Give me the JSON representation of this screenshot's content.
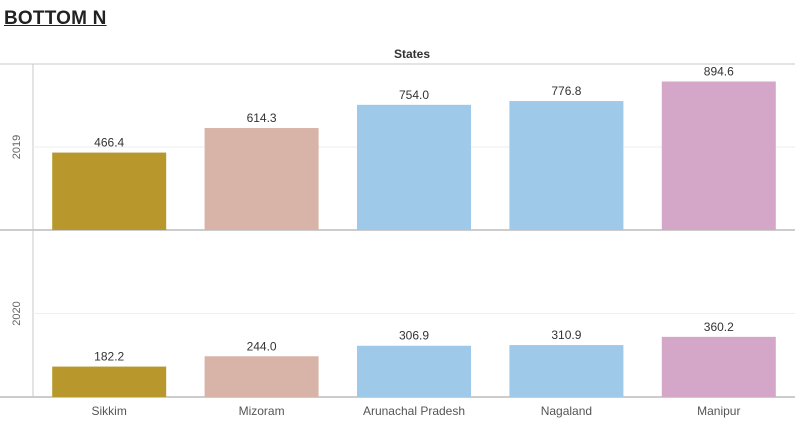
{
  "page": {
    "title": "BOTTOM N"
  },
  "chart_data": {
    "type": "bar",
    "column_header": "States",
    "categories": [
      "Sikkim",
      "Mizoram",
      "Arunachal Pradesh",
      "Nagaland",
      "Manipur"
    ],
    "colors": [
      "#b8972c",
      "#d7b4a7",
      "#9fc9e8",
      "#9fc9e8",
      "#d4a6c8"
    ],
    "panels": [
      {
        "row_label": "2019",
        "values": [
          466.4,
          614.3,
          754.0,
          776.8,
          894.6
        ],
        "labels": [
          "466.4",
          "614.3",
          "754.0",
          "776.8",
          "894.6"
        ]
      },
      {
        "row_label": "2020",
        "values": [
          182.2,
          244.0,
          306.9,
          310.9,
          360.2
        ],
        "labels": [
          "182.2",
          "244.0",
          "306.9",
          "310.9",
          "360.2"
        ]
      }
    ],
    "grid": true,
    "legend": "none"
  }
}
